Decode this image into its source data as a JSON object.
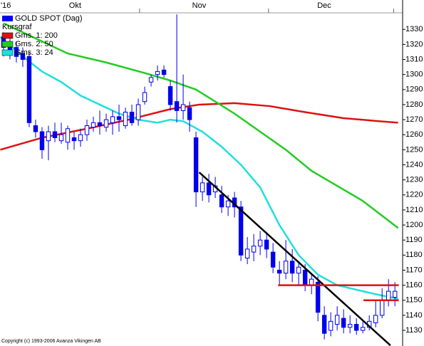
{
  "chart_data": {
    "type": "candlestick",
    "legend_title": "Kursgraf",
    "candles": {
      "name": "GOLD SPOT (Dag)",
      "color": "#0000ee",
      "open": [
        1325,
        1320,
        1318,
        1314,
        1312,
        1266,
        1262,
        1256,
        1262,
        1256,
        1255,
        1258,
        1256,
        1260,
        1265,
        1268,
        1265,
        1268,
        1272,
        1266,
        1275,
        1270,
        1282,
        1295,
        1300,
        1303,
        1292,
        1282,
        1276,
        1278,
        1258,
        1222,
        1228,
        1222,
        1220,
        1212,
        1218,
        1212,
        1178,
        1182,
        1186,
        1190,
        1182,
        1170,
        1168,
        1176,
        1168,
        1170,
        1160,
        1162,
        1140,
        1130,
        1134,
        1138,
        1132,
        1134,
        1130,
        1132,
        1135,
        1140,
        1150,
        1152
      ],
      "close": [
        1318,
        1315,
        1312,
        1310,
        1268,
        1262,
        1250,
        1262,
        1258,
        1260,
        1264,
        1256,
        1260,
        1266,
        1268,
        1266,
        1270,
        1272,
        1270,
        1275,
        1268,
        1280,
        1288,
        1298,
        1302,
        1300,
        1280,
        1276,
        1280,
        1270,
        1222,
        1228,
        1220,
        1226,
        1212,
        1216,
        1212,
        1180,
        1184,
        1186,
        1190,
        1184,
        1172,
        1168,
        1176,
        1168,
        1172,
        1160,
        1164,
        1142,
        1128,
        1136,
        1140,
        1132,
        1134,
        1130,
        1132,
        1136,
        1140,
        1150,
        1156,
        1156
      ],
      "high": [
        1328,
        1324,
        1322,
        1318,
        1315,
        1270,
        1265,
        1266,
        1268,
        1268,
        1266,
        1262,
        1264,
        1270,
        1272,
        1276,
        1274,
        1276,
        1280,
        1278,
        1280,
        1284,
        1292,
        1300,
        1306,
        1306,
        1296,
        1340,
        1300,
        1282,
        1262,
        1232,
        1234,
        1232,
        1226,
        1220,
        1222,
        1216,
        1192,
        1194,
        1196,
        1194,
        1188,
        1176,
        1190,
        1184,
        1176,
        1174,
        1168,
        1166,
        1146,
        1142,
        1146,
        1144,
        1140,
        1138,
        1136,
        1140,
        1150,
        1158,
        1164,
        1162
      ],
      "low": [
        1312,
        1310,
        1308,
        1305,
        1265,
        1258,
        1244,
        1243,
        1255,
        1254,
        1250,
        1250,
        1252,
        1256,
        1262,
        1260,
        1262,
        1260,
        1262,
        1264,
        1266,
        1266,
        1280,
        1292,
        1296,
        1298,
        1276,
        1268,
        1270,
        1262,
        1212,
        1216,
        1215,
        1218,
        1208,
        1206,
        1205,
        1176,
        1174,
        1176,
        1180,
        1178,
        1168,
        1160,
        1164,
        1162,
        1160,
        1156,
        1154,
        1136,
        1124,
        1126,
        1130,
        1128,
        1128,
        1127,
        1128,
        1130,
        1132,
        1138,
        1146,
        1146
      ]
    },
    "moving_averages": [
      {
        "name": "Gms. 1: 200",
        "color": "#dd1111",
        "x": [
          -0.5,
          6,
          13,
          19.5,
          26,
          30.5,
          36,
          41.5,
          47,
          53,
          58.5,
          61.5
        ],
        "values": [
          1250,
          1258,
          1264,
          1270,
          1277,
          1280,
          1281,
          1279,
          1275,
          1271,
          1269,
          1268
        ]
      },
      {
        "name": "Gms. 2: 50",
        "color": "#22cc22",
        "x": [
          0,
          6,
          10,
          16,
          22,
          26,
          30,
          33,
          36,
          40,
          44,
          48,
          52,
          56,
          61.5
        ],
        "values": [
          1334,
          1322,
          1314,
          1308,
          1301,
          1296,
          1290,
          1282,
          1274,
          1262,
          1250,
          1236,
          1226,
          1216,
          1198
        ]
      },
      {
        "name": "Gms. 3: 24",
        "color": "#22dddd",
        "x": [
          -0.5,
          3,
          6,
          9,
          12,
          15,
          18,
          21,
          24,
          26,
          28,
          31,
          34,
          37,
          40,
          43,
          46,
          49,
          52,
          55,
          58,
          61.5
        ],
        "values": [
          1325,
          1312,
          1302,
          1295,
          1286,
          1280,
          1274,
          1270,
          1268,
          1270,
          1269,
          1262,
          1252,
          1240,
          1225,
          1200,
          1180,
          1167,
          1160,
          1157,
          1154,
          1151
        ]
      }
    ],
    "trend_lines": [
      {
        "color": "#000000",
        "x": [
          30.5,
          60.3
        ],
        "values": [
          1235,
          1120
        ]
      },
      {
        "color": "#dd1111",
        "x": [
          42.8,
          61.6
        ],
        "values": [
          1160,
          1160
        ]
      },
      {
        "color": "#dd1111",
        "x": [
          56.1,
          61.6
        ],
        "values": [
          1150,
          1150
        ]
      }
    ],
    "xlim": [
      -0.55,
      62.2
    ],
    "ylim": [
      1119.6,
      1341
    ],
    "yticks": [
      1130,
      1140,
      1150,
      1160,
      1170,
      1180,
      1190,
      1200,
      1210,
      1220,
      1230,
      1240,
      1250,
      1260,
      1270,
      1280,
      1290,
      1300,
      1310,
      1320,
      1330
    ],
    "month_labels": [
      {
        "value": -0.5,
        "label": "'16"
      },
      {
        "value": 10.2,
        "label": "Okt"
      },
      {
        "value": 29.4,
        "label": "Nov"
      },
      {
        "value": 48.9,
        "label": "Dec"
      }
    ],
    "month_ticks": [
      21.2,
      41.3,
      60.8
    ],
    "copyright": "Copyright (c) 1993-2006 Avanza Vikingen AB"
  }
}
